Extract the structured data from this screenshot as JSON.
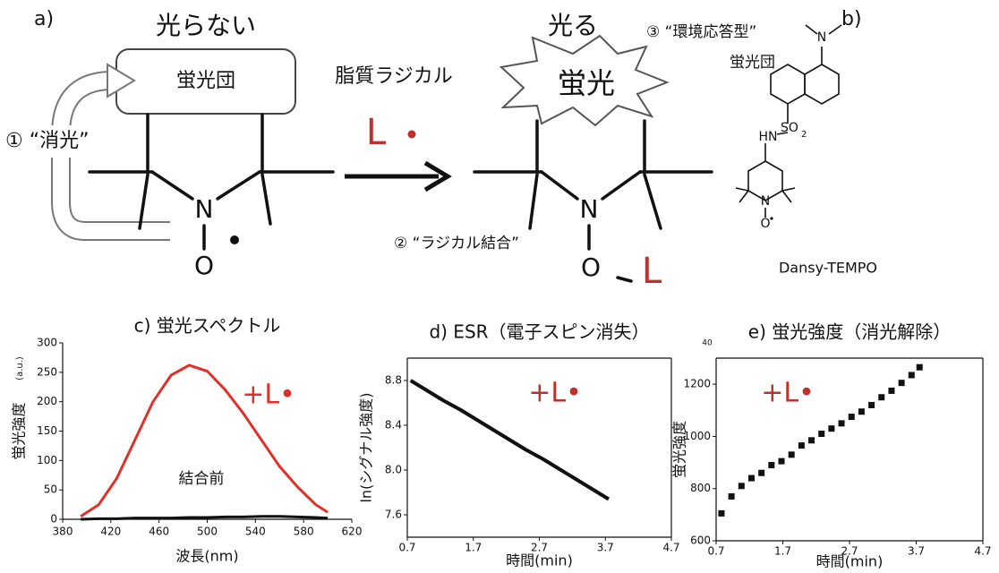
{
  "panel_a": {
    "label": "a)",
    "left_title": "光らない",
    "fluorophore": "蛍光団",
    "quench": "① “消光”",
    "reagent": "脂質ラジカル",
    "radical": "L",
    "right_title": "光る",
    "fluorescence": "蛍光",
    "env_line1": "③ “環境応答型”",
    "env_line2": "蛍光団",
    "bonding": "② “ラジカル結合”",
    "left_molecule": {
      "n": "N",
      "o": "O"
    },
    "right_molecule": {
      "n": "N",
      "o": "O",
      "l": "L"
    }
  },
  "panel_b": {
    "label": "b)",
    "atoms": {
      "n_top": "N",
      "hn": "HN",
      "so": "SO",
      "sub2": "2",
      "n_ring": "N",
      "o": "O"
    },
    "name": "Dansy-TEMPO"
  },
  "chart_data": [
    {
      "type": "line",
      "title": "c) 蛍光スペクトル",
      "xlabel": "波長(nm)",
      "ylabel": "蛍光強度",
      "y_unit": "(a.u.)",
      "x": [
        395,
        410,
        425,
        440,
        455,
        470,
        485,
        500,
        515,
        530,
        545,
        560,
        575,
        590,
        600
      ],
      "series": [
        {
          "name": "+L•",
          "color": "#e0302a",
          "style": "line",
          "values": [
            5,
            25,
            70,
            135,
            200,
            245,
            262,
            252,
            220,
            180,
            135,
            90,
            55,
            25,
            12
          ]
        },
        {
          "name": "結合前",
          "color": "#111111",
          "style": "line",
          "values": [
            0,
            1,
            1,
            2,
            2,
            2,
            3,
            3,
            4,
            4,
            5,
            5,
            4,
            3,
            2
          ]
        }
      ],
      "xlim": [
        380,
        620
      ],
      "ylim": [
        0,
        300
      ],
      "xticks": [
        380,
        420,
        460,
        500,
        540,
        580,
        620
      ],
      "yticks": [
        0,
        50,
        100,
        150,
        200,
        250,
        300
      ],
      "box": false
    },
    {
      "type": "line",
      "title": "d) ESR（電子スピン消失）",
      "xlabel": "時間(min)",
      "ylabel": "ln(シグナル強度)",
      "x": [
        0.75,
        1.0,
        1.25,
        1.5,
        1.75,
        2.0,
        2.25,
        2.5,
        2.75,
        3.0,
        3.25,
        3.5,
        3.75
      ],
      "series": [
        {
          "color": "#111111",
          "style": "line",
          "values": [
            8.8,
            8.71,
            8.62,
            8.54,
            8.45,
            8.36,
            8.27,
            8.18,
            8.1,
            8.01,
            7.92,
            7.83,
            7.74
          ]
        }
      ],
      "annotations": [
        {
          "text": "+L•",
          "color": "#c0302a"
        }
      ],
      "xlim": [
        0.7,
        4.7
      ],
      "ylim": [
        7.4,
        9.0
      ],
      "xticks": [
        0.7,
        1.7,
        2.7,
        3.7,
        4.7
      ],
      "yticks": [
        7.6,
        {
          "value": 8,
          "label": "8.0"
        },
        8.4,
        8.8
      ],
      "box": true
    },
    {
      "type": "scatter",
      "title": "e) 蛍光強度（消光解除）",
      "xlabel": "時間(min)",
      "ylabel": "蛍光強度",
      "extra_text": "40",
      "x": [
        0.78,
        0.93,
        1.08,
        1.23,
        1.38,
        1.53,
        1.68,
        1.83,
        1.98,
        2.13,
        2.28,
        2.43,
        2.58,
        2.73,
        2.88,
        3.03,
        3.18,
        3.33,
        3.48,
        3.63,
        3.75
      ],
      "series": [
        {
          "color": "#111111",
          "style": "markers",
          "values": [
            705,
            770,
            810,
            840,
            860,
            890,
            905,
            930,
            965,
            985,
            1010,
            1030,
            1050,
            1075,
            1095,
            1120,
            1150,
            1175,
            1205,
            1235,
            1265
          ]
        }
      ],
      "annotations": [
        {
          "text": "+L•",
          "color": "#c0302a"
        }
      ],
      "xlim": [
        0.7,
        4.7
      ],
      "ylim": [
        600,
        1300
      ],
      "xticks": [
        0.7,
        1.7,
        2.7,
        3.7,
        4.7
      ],
      "yticks": [
        600,
        800,
        1000,
        1200
      ],
      "box": true
    }
  ]
}
